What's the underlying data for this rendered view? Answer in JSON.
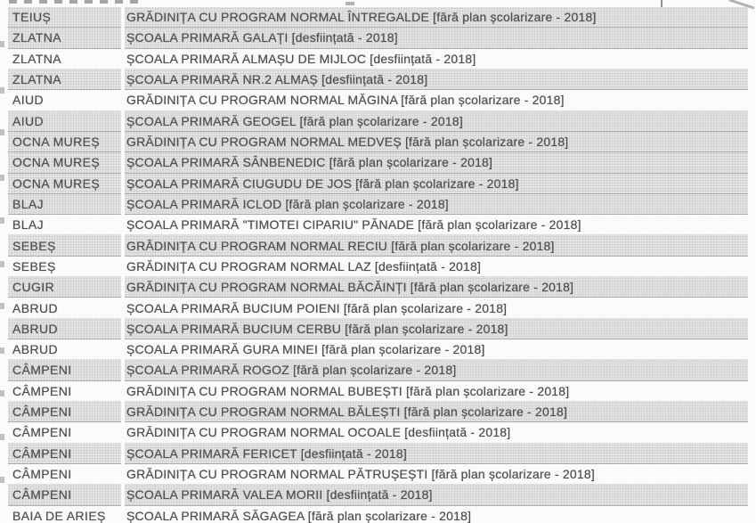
{
  "table": {
    "rows": [
      {
        "locality": "TEIUȘ",
        "school": "GRĂDINIȚA CU PROGRAM NORMAL ÎNTREGALDE [fără plan școlarizare - 2018]",
        "shaded": true
      },
      {
        "locality": "ZLATNA",
        "school": "ȘCOALA PRIMARĂ GALAȚI [desființată - 2018]",
        "shaded": true
      },
      {
        "locality": "ZLATNA",
        "school": "ȘCOALA PRIMARĂ ALMAȘU DE MIJLOC [desființată - 2018]",
        "shaded": false
      },
      {
        "locality": "ZLATNA",
        "school": "ȘCOALA PRIMARĂ NR.2 ALMAȘ [desființată - 2018]",
        "shaded": true
      },
      {
        "locality": "AIUD",
        "school": "GRĂDINIȚA CU PROGRAM NORMAL MĂGINA [fără plan școlarizare - 2018]",
        "shaded": false
      },
      {
        "locality": "AIUD",
        "school": "ȘCOALA PRIMARĂ GEOGEL [fără plan școlarizare - 2018]",
        "shaded": true
      },
      {
        "locality": "OCNA MUREȘ",
        "school": "GRĂDINIȚA CU PROGRAM NORMAL MEDVEȘ [fără plan școlarizare - 2018]",
        "shaded": true
      },
      {
        "locality": "OCNA MUREȘ",
        "school": "ȘCOALA PRIMARĂ SÂNBENEDIC [fără plan școlarizare - 2018]",
        "shaded": true
      },
      {
        "locality": "OCNA MUREȘ",
        "school": "ȘCOALA PRIMARĂ CIUGUDU DE JOS [fără plan școlarizare - 2018]",
        "shaded": true
      },
      {
        "locality": "BLAJ",
        "school": "ȘCOALA PRIMARĂ ICLOD [fără plan școlarizare - 2018]",
        "shaded": true
      },
      {
        "locality": "BLAJ",
        "school": "ȘCOALA PRIMARĂ \"TIMOTEI CIPARIU\" PĂNADE [fără plan școlarizare - 2018]",
        "shaded": false
      },
      {
        "locality": "SEBEȘ",
        "school": "GRĂDINIȚA CU PROGRAM NORMAL RECIU [fără plan școlarizare - 2018]",
        "shaded": true
      },
      {
        "locality": "SEBEȘ",
        "school": "GRĂDINIȚA CU PROGRAM NORMAL LAZ [desființată - 2018]",
        "shaded": false
      },
      {
        "locality": "CUGIR",
        "school": "GRĂDINIȚA CU PROGRAM NORMAL BĂCĂINȚI [fără plan școlarizare - 2018]",
        "shaded": true
      },
      {
        "locality": "ABRUD",
        "school": "ȘCOALA PRIMARĂ BUCIUM POIENI [fără plan școlarizare - 2018]",
        "shaded": false
      },
      {
        "locality": "ABRUD",
        "school": "ȘCOALA PRIMARĂ BUCIUM CERBU [fără plan școlarizare - 2018]",
        "shaded": true
      },
      {
        "locality": "ABRUD",
        "school": "ȘCOALA PRIMARĂ GURA MINEI [fără plan școlarizare - 2018]",
        "shaded": false
      },
      {
        "locality": "CÂMPENI",
        "school": "ȘCOALA PRIMARĂ ROGOZ [fără plan școlarizare - 2018]",
        "shaded": true
      },
      {
        "locality": "CÂMPENI",
        "school": "GRĂDINIȚA CU PROGRAM NORMAL BUBEȘTI [fără plan școlarizare - 2018]",
        "shaded": false
      },
      {
        "locality": "CÂMPENI",
        "school": "GRĂDINIȚA CU PROGRAM NORMAL BĂLEȘTI [fără plan școlarizare - 2018]",
        "shaded": true
      },
      {
        "locality": "CÂMPENI",
        "school": "GRĂDINIȚA CU PROGRAM NORMAL OCOALE [desființată - 2018]",
        "shaded": false
      },
      {
        "locality": "CÂMPENI",
        "school": "ȘCOALA PRIMARĂ FERICET [desființată - 2018]",
        "shaded": true
      },
      {
        "locality": "CÂMPENI",
        "school": "GRĂDINIȚA CU PROGRAM NORMAL PĂTRUȘEȘTI [fără plan școlarizare - 2018]",
        "shaded": false
      },
      {
        "locality": "CÂMPENI",
        "school": "ȘCOALA PRIMARĂ VALEA MORII [desființată - 2018]",
        "shaded": true
      },
      {
        "locality": "BAIA DE ARIEȘ",
        "school": "ȘCOALA PRIMARĂ SĂGAGEA [fără plan școlarizare - 2018]",
        "shaded": false
      }
    ]
  },
  "colors": {
    "text": "#4c4c4c",
    "row_shaded": "#e9e9e9",
    "row_plain": "#fefefe",
    "row_border": "#969696"
  }
}
